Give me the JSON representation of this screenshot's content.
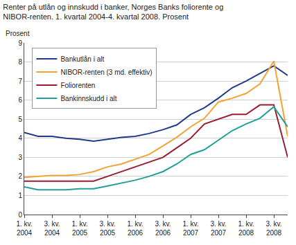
{
  "chart_data": {
    "type": "line",
    "title": "Renter på utlån og innskudd i banker, Norges Banks foliorente og\nNIBOR-renten. 1. kvartal 2004-4. kvartal 2008. Prosent",
    "ylabel": "Prosent",
    "categories": [
      "1. kv.\n2004",
      null,
      "3. kv.\n2004",
      null,
      "1. kv.\n2005",
      null,
      "3. kv.\n2005",
      null,
      "1. kv.\n2006",
      null,
      "3. kv.\n2006",
      null,
      "1. kv.\n2007",
      null,
      "3. kv.\n2007",
      null,
      "1. kv.\n2008",
      null,
      "3. kv.\n2008",
      null
    ],
    "series": [
      {
        "name": "Bankutlån i alt",
        "color": "#1f3a8a",
        "values": [
          4.3,
          4.1,
          4.1,
          4.0,
          3.95,
          3.85,
          3.95,
          4.05,
          4.1,
          4.25,
          4.45,
          4.7,
          5.25,
          5.6,
          6.1,
          6.65,
          7.0,
          7.4,
          7.8,
          7.3
        ]
      },
      {
        "name": "NIBOR-renten (3 md. effektiv)",
        "color": "#f5a033",
        "values": [
          1.95,
          2.0,
          2.05,
          2.05,
          2.1,
          2.25,
          2.5,
          2.65,
          2.9,
          3.15,
          3.6,
          4.05,
          4.6,
          5.05,
          5.9,
          6.1,
          6.35,
          6.85,
          8.05,
          4.1
        ]
      },
      {
        "name": "Foliorenten",
        "color": "#9b1b30",
        "values": [
          1.75,
          1.75,
          1.75,
          1.75,
          1.75,
          1.75,
          2.0,
          2.25,
          2.5,
          2.75,
          3.0,
          3.5,
          4.0,
          4.75,
          5.0,
          5.25,
          5.25,
          5.75,
          5.75,
          3.0
        ]
      },
      {
        "name": "Bankinnskudd i alt",
        "color": "#1fa09a",
        "values": [
          1.45,
          1.3,
          1.3,
          1.3,
          1.35,
          1.35,
          1.5,
          1.65,
          1.8,
          2.0,
          2.25,
          2.65,
          3.15,
          3.4,
          3.9,
          4.4,
          4.75,
          5.05,
          5.65,
          4.6
        ]
      }
    ],
    "ylim": [
      0,
      9
    ],
    "yticks": [
      0,
      1,
      2,
      3,
      4,
      5,
      6,
      7,
      8,
      9
    ],
    "grid": true,
    "legend": "upper left"
  }
}
